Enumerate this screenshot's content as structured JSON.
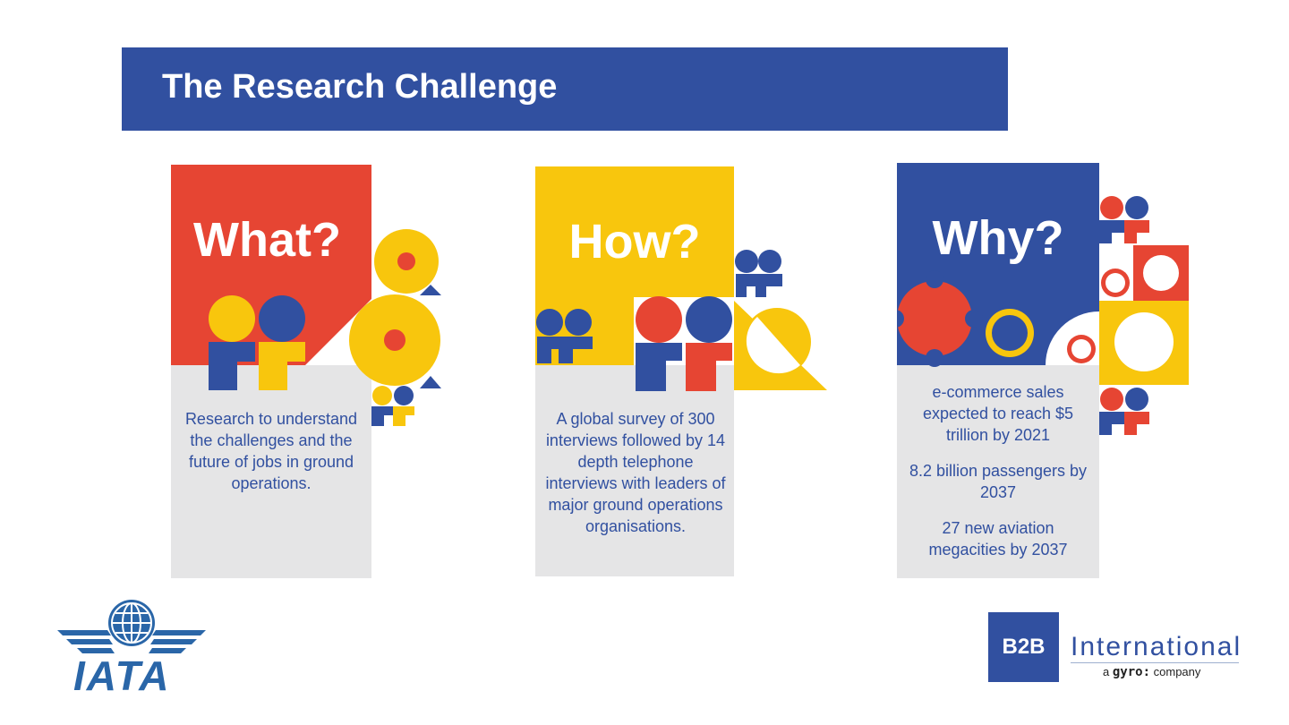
{
  "header": {
    "title": "The Research Challenge"
  },
  "cards": {
    "what": {
      "title": "What?",
      "text": "Research to understand the challenges and the future of jobs in ground operations."
    },
    "how": {
      "title": "How?",
      "text": "A global survey of 300 interviews followed by 14 depth telephone interviews with leaders of major ground operations organisations."
    },
    "why": {
      "title": "Why?",
      "stats": [
        "e-commerce sales expected to reach $5 trillion by 2021",
        "8.2 billion passengers by 2037",
        "27 new aviation megacities by 2037"
      ]
    }
  },
  "logos": {
    "iata": "IATA",
    "b2b": {
      "mark": "B2B",
      "name": "International",
      "sub_prefix": "a",
      "sub_brand": "gyro:",
      "sub_suffix": "company"
    }
  },
  "colors": {
    "blue": "#3150a0",
    "red": "#e64533",
    "yellow": "#f8c60d",
    "grey": "#e5e5e6"
  }
}
